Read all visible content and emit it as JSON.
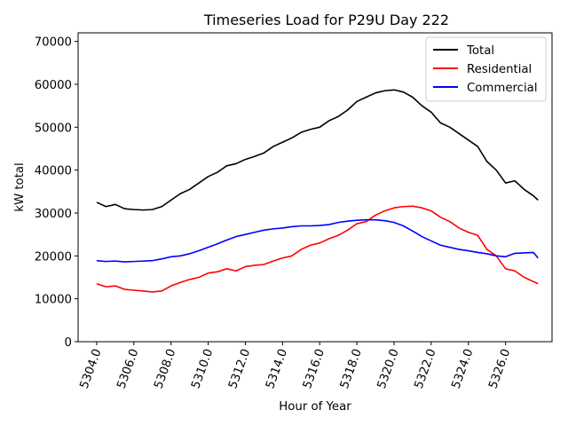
{
  "chart_data": {
    "type": "line",
    "title": "Timeseries Load for P29U   Day 222",
    "xlabel": "Hour of Year",
    "ylabel": "kW total",
    "xlim": [
      5303.0,
      5328.5
    ],
    "ylim": [
      0,
      72000
    ],
    "xticks": [
      5304.0,
      5306.0,
      5308.0,
      5310.0,
      5312.0,
      5314.0,
      5316.0,
      5318.0,
      5320.0,
      5322.0,
      5324.0,
      5326.0
    ],
    "xtick_labels": [
      "5304.0",
      "5306.0",
      "5308.0",
      "5310.0",
      "5312.0",
      "5314.0",
      "5316.0",
      "5318.0",
      "5320.0",
      "5322.0",
      "5324.0",
      "5326.0"
    ],
    "yticks": [
      0,
      10000,
      20000,
      30000,
      40000,
      50000,
      60000,
      70000
    ],
    "ytick_labels": [
      "0",
      "10000",
      "20000",
      "30000",
      "40000",
      "50000",
      "60000",
      "70000"
    ],
    "legend_position": "upper right",
    "series": [
      {
        "name": "Total",
        "color": "#000000",
        "x": [
          5304.0,
          5304.5,
          5305.0,
          5305.5,
          5306.0,
          5306.5,
          5307.0,
          5307.5,
          5308.0,
          5308.5,
          5309.0,
          5309.5,
          5310.0,
          5310.5,
          5311.0,
          5311.5,
          5312.0,
          5312.5,
          5313.0,
          5313.5,
          5314.0,
          5314.5,
          5315.0,
          5315.5,
          5316.0,
          5316.5,
          5317.0,
          5317.5,
          5318.0,
          5318.5,
          5319.0,
          5319.5,
          5320.0,
          5320.5,
          5321.0,
          5321.5,
          5322.0,
          5322.5,
          5323.0,
          5323.5,
          5324.0,
          5324.5,
          5325.0,
          5325.5,
          5326.0,
          5326.5,
          5327.0,
          5327.5,
          5327.75
        ],
        "values": [
          32500,
          31500,
          32000,
          31000,
          30800,
          30700,
          30800,
          31500,
          33000,
          34500,
          35500,
          37000,
          38500,
          39500,
          41000,
          41500,
          42500,
          43200,
          44000,
          45500,
          46500,
          47500,
          48800,
          49500,
          50000,
          51500,
          52500,
          54000,
          56000,
          57000,
          58000,
          58500,
          58700,
          58200,
          57000,
          55000,
          53500,
          51000,
          50000,
          48500,
          47000,
          45500,
          42000,
          40000,
          37000,
          37500,
          35500,
          34000,
          33000
        ]
      },
      {
        "name": "Residential",
        "color": "#ff0000",
        "x": [
          5304.0,
          5304.5,
          5305.0,
          5305.5,
          5306.0,
          5306.5,
          5307.0,
          5307.5,
          5308.0,
          5308.5,
          5309.0,
          5309.5,
          5310.0,
          5310.5,
          5311.0,
          5311.5,
          5312.0,
          5312.5,
          5313.0,
          5313.5,
          5314.0,
          5314.5,
          5315.0,
          5315.5,
          5316.0,
          5316.5,
          5317.0,
          5317.5,
          5318.0,
          5318.5,
          5319.0,
          5319.5,
          5320.0,
          5320.5,
          5321.0,
          5321.5,
          5322.0,
          5322.5,
          5323.0,
          5323.5,
          5324.0,
          5324.5,
          5325.0,
          5325.5,
          5326.0,
          5326.5,
          5327.0,
          5327.5,
          5327.75
        ],
        "values": [
          13500,
          12800,
          13000,
          12200,
          12000,
          11800,
          11600,
          11800,
          13000,
          13800,
          14500,
          15000,
          16000,
          16300,
          17000,
          16500,
          17500,
          17800,
          18000,
          18800,
          19500,
          20000,
          21500,
          22500,
          23000,
          24000,
          24800,
          26000,
          27500,
          28000,
          29500,
          30500,
          31200,
          31500,
          31600,
          31200,
          30500,
          29000,
          28000,
          26500,
          25500,
          24800,
          21500,
          20000,
          17000,
          16500,
          15000,
          14000,
          13500
        ]
      },
      {
        "name": "Commercial",
        "color": "#0000ff",
        "x": [
          5304.0,
          5304.5,
          5305.0,
          5305.5,
          5306.0,
          5306.5,
          5307.0,
          5307.5,
          5308.0,
          5308.5,
          5309.0,
          5309.5,
          5310.0,
          5310.5,
          5311.0,
          5311.5,
          5312.0,
          5312.5,
          5313.0,
          5313.5,
          5314.0,
          5314.5,
          5315.0,
          5315.5,
          5316.0,
          5316.5,
          5317.0,
          5317.5,
          5318.0,
          5318.5,
          5319.0,
          5319.5,
          5320.0,
          5320.5,
          5321.0,
          5321.5,
          5322.0,
          5322.5,
          5323.0,
          5323.5,
          5324.0,
          5324.5,
          5325.0,
          5325.5,
          5326.0,
          5326.5,
          5327.0,
          5327.5,
          5327.75
        ],
        "values": [
          18900,
          18700,
          18800,
          18600,
          18700,
          18800,
          18900,
          19300,
          19800,
          20000,
          20500,
          21200,
          22000,
          22800,
          23700,
          24500,
          25000,
          25500,
          26000,
          26300,
          26500,
          26800,
          27000,
          27000,
          27100,
          27300,
          27800,
          28100,
          28300,
          28400,
          28400,
          28200,
          27800,
          27000,
          25800,
          24500,
          23500,
          22500,
          22000,
          21500,
          21200,
          20800,
          20500,
          20000,
          19800,
          20600,
          20700,
          20800,
          19500
        ]
      }
    ]
  }
}
